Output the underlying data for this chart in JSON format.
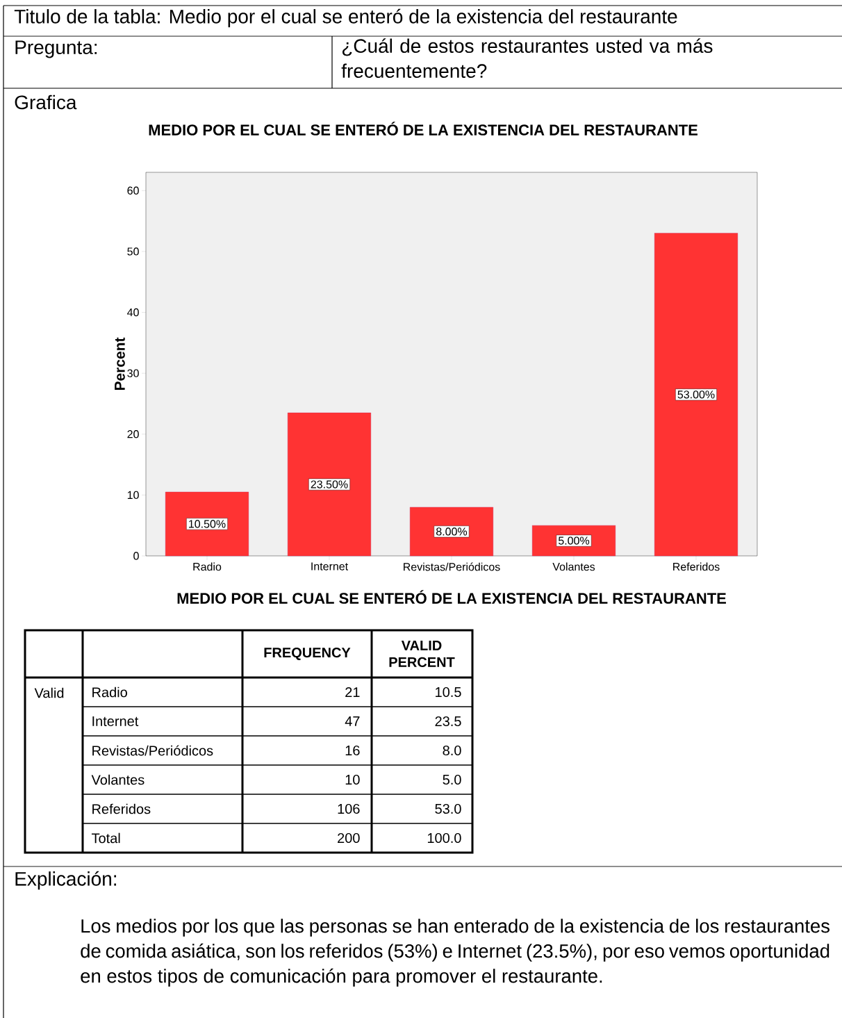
{
  "chart_data": {
    "type": "bar",
    "title": "MEDIO POR EL CUAL SE ENTERÓ DE LA EXISTENCIA DEL RESTAURANTE",
    "xlabel": "MEDIO POR EL CUAL SE ENTERÓ DE LA EXISTENCIA DEL RESTAURANTE",
    "ylabel": "Percent",
    "categories": [
      "Radio",
      "Internet",
      "Revistas/Periódicos",
      "Volantes",
      "Referidos"
    ],
    "values": [
      10.5,
      23.5,
      8.0,
      5.0,
      53.0
    ],
    "value_labels": [
      "10.50%",
      "23.50%",
      "8.00%",
      "5.00%",
      "53.00%"
    ],
    "color": "#ff3333",
    "ylim": [
      0,
      63
    ],
    "yticks": [
      0,
      10,
      20,
      30,
      40,
      50,
      60
    ],
    "annotations": [
      "Titulo de la tabla: Medio por el cual se enteró de la existencia del restaurante",
      "Pregunta:",
      "¿Cuál de estos restaurantes usted va más frecuentemente?",
      "Grafica",
      "FREQUENCY",
      "VALID PERCENT",
      "Valid",
      "Radio",
      "Internet",
      "Revistas/Periódicos",
      "Volantes",
      "Referidos",
      "Total",
      "21",
      "47",
      "16",
      "10",
      "106",
      "200",
      "10.5",
      "23.5",
      "8.0",
      "5.0",
      "53.0",
      "100.0",
      "Explicación:",
      "Los medios por los que las personas se han enterado de la existencia de los restaurantes de comida asiática, son los referidos (53%) e Internet (23.5%), por eso vemos oportunidad en estos tipos de comunicación para promover el restaurante."
    ]
  }
}
